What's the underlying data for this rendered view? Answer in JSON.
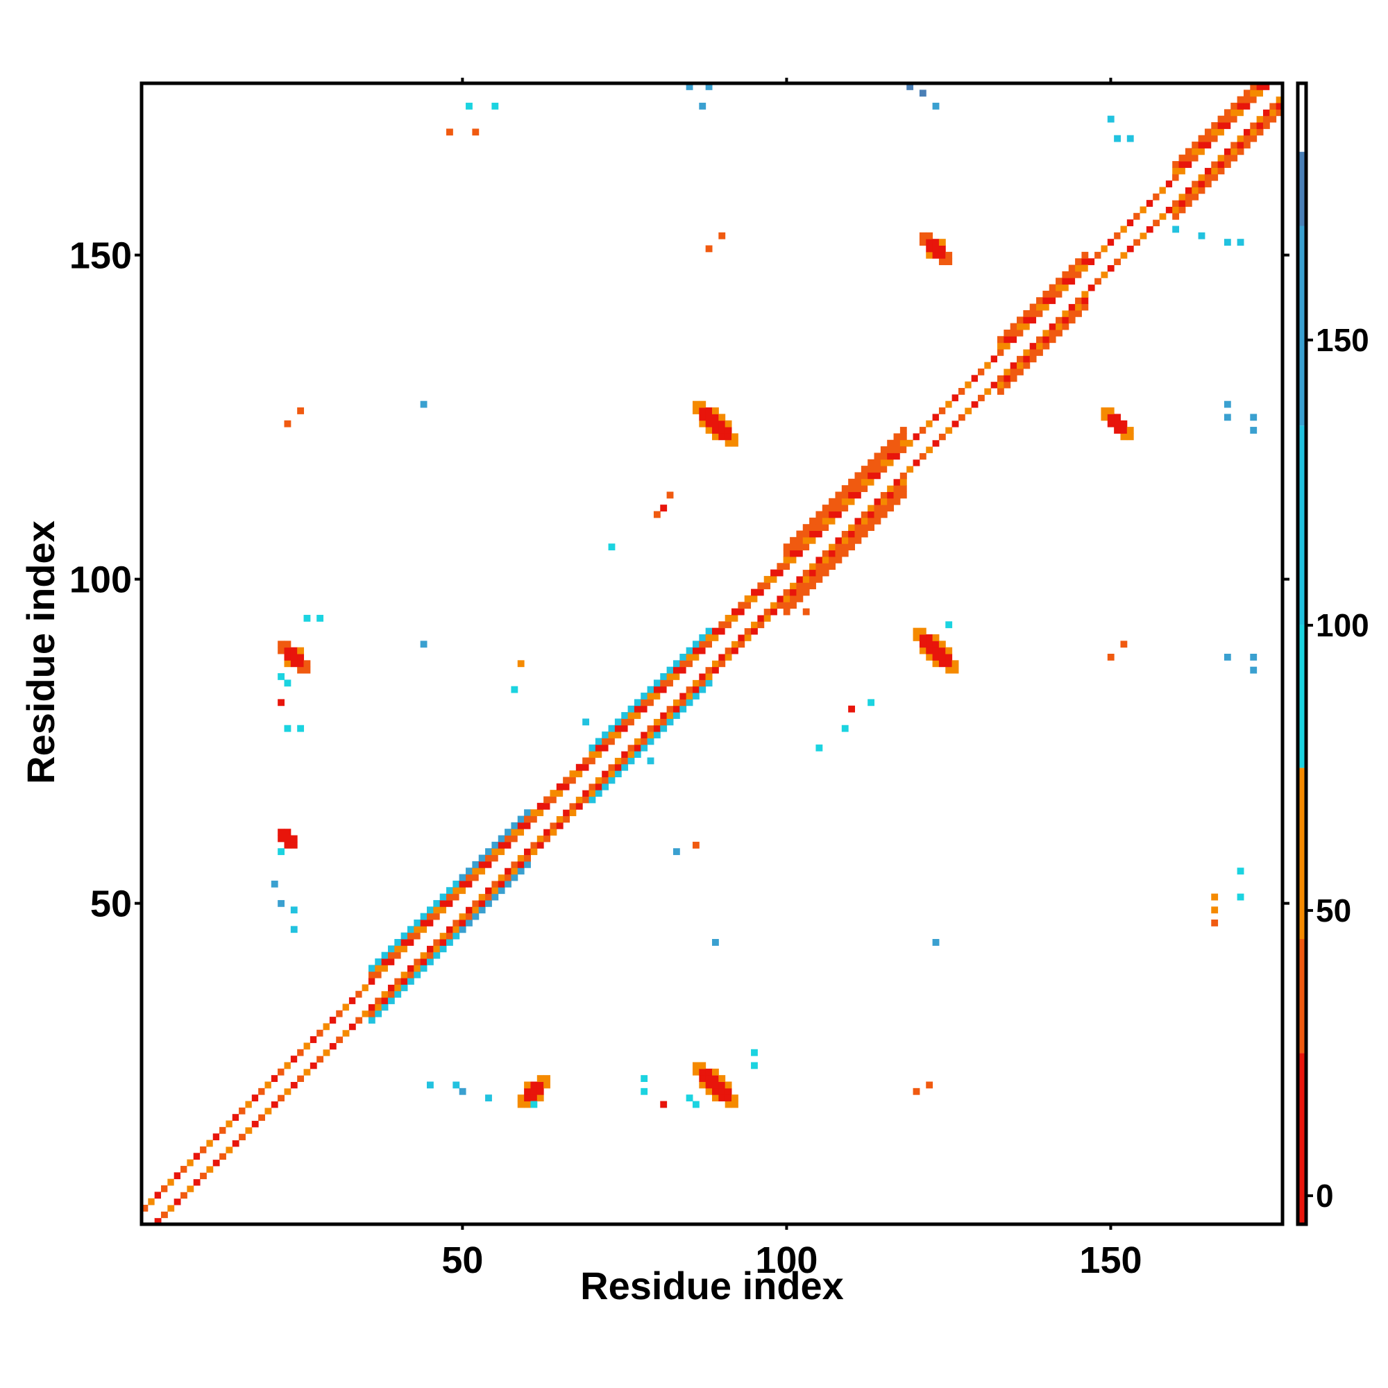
{
  "chart_data": {
    "type": "heatmap",
    "xlabel": "Residue index",
    "ylabel": "Residue index",
    "x_range": [
      1,
      176
    ],
    "y_range": [
      1,
      176
    ],
    "x_ticks": [
      50,
      100,
      150
    ],
    "y_ticks": [
      50,
      100,
      150
    ],
    "grid": false,
    "colorbar": {
      "placement": "right",
      "range": [
        -5,
        195
      ],
      "ticks": [
        0,
        50,
        100,
        150
      ],
      "bins": [
        {
          "from": -5,
          "to": 25,
          "color": "#e8150b"
        },
        {
          "from": 25,
          "to": 45,
          "color": "#f05a10"
        },
        {
          "from": 45,
          "to": 75,
          "color": "#f58a00"
        },
        {
          "from": 75,
          "to": 100,
          "color": "#1bd3e0"
        },
        {
          "from": 100,
          "to": 135,
          "color": "#22c2df"
        },
        {
          "from": 135,
          "to": 170,
          "color": "#3aa0d0"
        },
        {
          "from": 170,
          "to": 183,
          "color": "#4a7fb6"
        },
        {
          "from": 183,
          "to": 195,
          "color": "#ffffff"
        }
      ]
    },
    "diagonal": {
      "from": 1,
      "to": 176,
      "band_width": 3,
      "segments": [
        {
          "from": 1,
          "to": 22,
          "wide": 2,
          "color": "#f05a10"
        },
        {
          "from": 22,
          "to": 36,
          "wide": 2,
          "color": "#e8150b"
        },
        {
          "from": 36,
          "to": 50,
          "wide": 4,
          "color": "#22c2df"
        },
        {
          "from": 50,
          "to": 60,
          "wide": 4,
          "color": "#3aa0d0"
        },
        {
          "from": 60,
          "to": 70,
          "wide": 3,
          "color": "#e8150b"
        },
        {
          "from": 70,
          "to": 88,
          "wide": 4,
          "color": "#22c2df"
        },
        {
          "from": 88,
          "to": 100,
          "wide": 3,
          "color": "#e8150b"
        },
        {
          "from": 100,
          "to": 118,
          "wide": 5,
          "color": "#f05a10"
        },
        {
          "from": 118,
          "to": 133,
          "wide": 2,
          "color": "#e8150b"
        },
        {
          "from": 133,
          "to": 146,
          "wide": 4,
          "color": "#f05a10"
        },
        {
          "from": 146,
          "to": 160,
          "wide": 2,
          "color": "#e8150b"
        },
        {
          "from": 160,
          "to": 176,
          "wide": 4,
          "color": "#f05a10"
        }
      ]
    },
    "off_diagonal_blobs": [
      {
        "x": 24,
        "y": 88,
        "rx": 4.0,
        "ry": 1.5,
        "color": "#e8150b"
      },
      {
        "x": 23,
        "y": 60,
        "rx": 2.5,
        "ry": 1.3,
        "color": "#e8150b"
      },
      {
        "x": 61,
        "y": 21,
        "rx": 1.5,
        "ry": 3.0,
        "color": "#e8150b"
      },
      {
        "x": 89,
        "y": 22,
        "rx": 4.5,
        "ry": 1.5,
        "color": "#e8150b"
      },
      {
        "x": 89,
        "y": 124,
        "rx": 4.5,
        "ry": 1.5,
        "color": "#e8150b"
      },
      {
        "x": 123,
        "y": 89,
        "rx": 4.5,
        "ry": 1.5,
        "color": "#e8150b"
      },
      {
        "x": 123,
        "y": 151,
        "rx": 3.5,
        "ry": 1.5,
        "color": "#e8150b"
      },
      {
        "x": 151,
        "y": 124,
        "rx": 3.0,
        "ry": 1.3,
        "color": "#e8150b"
      }
    ],
    "off_diagonal_cells": [
      {
        "x": 85,
        "y": 20,
        "color": "#1bd3e0"
      },
      {
        "x": 86,
        "y": 19,
        "color": "#1bd3e0"
      },
      {
        "x": 95,
        "y": 27,
        "color": "#1bd3e0"
      },
      {
        "x": 95,
        "y": 25,
        "color": "#1bd3e0"
      },
      {
        "x": 61,
        "y": 19,
        "color": "#1bd3e0"
      },
      {
        "x": 22,
        "y": 85,
        "color": "#1bd3e0"
      },
      {
        "x": 23,
        "y": 84,
        "color": "#1bd3e0"
      },
      {
        "x": 22,
        "y": 58,
        "color": "#1bd3e0"
      },
      {
        "x": 45,
        "y": 22,
        "color": "#22c2df"
      },
      {
        "x": 49,
        "y": 22,
        "color": "#22c2df"
      },
      {
        "x": 50,
        "y": 21,
        "color": "#3aa0d0"
      },
      {
        "x": 54,
        "y": 20,
        "color": "#22c2df"
      },
      {
        "x": 78,
        "y": 23,
        "color": "#1bd3e0"
      },
      {
        "x": 78,
        "y": 21,
        "color": "#1bd3e0"
      },
      {
        "x": 81,
        "y": 19,
        "color": "#e8150b"
      },
      {
        "x": 120,
        "y": 21,
        "color": "#f05a10"
      },
      {
        "x": 122,
        "y": 22,
        "color": "#f05a10"
      },
      {
        "x": 23,
        "y": 124,
        "color": "#f05a10"
      },
      {
        "x": 25,
        "y": 126,
        "color": "#f05a10"
      },
      {
        "x": 44,
        "y": 127,
        "color": "#3aa0d0"
      },
      {
        "x": 44,
        "y": 90,
        "color": "#3aa0d0"
      },
      {
        "x": 26,
        "y": 94,
        "color": "#1bd3e0"
      },
      {
        "x": 28,
        "y": 94,
        "color": "#1bd3e0"
      },
      {
        "x": 22,
        "y": 81,
        "color": "#e8150b"
      },
      {
        "x": 23,
        "y": 77,
        "color": "#1bd3e0"
      },
      {
        "x": 25,
        "y": 77,
        "color": "#1bd3e0"
      },
      {
        "x": 21,
        "y": 53,
        "color": "#3aa0d0"
      },
      {
        "x": 22,
        "y": 50,
        "color": "#3aa0d0"
      },
      {
        "x": 24,
        "y": 49,
        "color": "#22c2df"
      },
      {
        "x": 24,
        "y": 46,
        "color": "#22c2df"
      },
      {
        "x": 51,
        "y": 173,
        "color": "#1bd3e0"
      },
      {
        "x": 55,
        "y": 173,
        "color": "#1bd3e0"
      },
      {
        "x": 48,
        "y": 169,
        "color": "#f05a10"
      },
      {
        "x": 52,
        "y": 169,
        "color": "#f05a10"
      },
      {
        "x": 85,
        "y": 176,
        "color": "#3aa0d0"
      },
      {
        "x": 88,
        "y": 176,
        "color": "#3aa0d0"
      },
      {
        "x": 87,
        "y": 173,
        "color": "#3aa0d0"
      },
      {
        "x": 119,
        "y": 176,
        "color": "#4a7fb6"
      },
      {
        "x": 121,
        "y": 175,
        "color": "#4a7fb6"
      },
      {
        "x": 123,
        "y": 173,
        "color": "#3aa0d0"
      },
      {
        "x": 88,
        "y": 151,
        "color": "#f05a10"
      },
      {
        "x": 90,
        "y": 153,
        "color": "#f05a10"
      },
      {
        "x": 82,
        "y": 113,
        "color": "#f05a10"
      },
      {
        "x": 80,
        "y": 110,
        "color": "#f05a10"
      },
      {
        "x": 81,
        "y": 111,
        "color": "#e8150b"
      },
      {
        "x": 73,
        "y": 105,
        "color": "#1bd3e0"
      },
      {
        "x": 59,
        "y": 87,
        "color": "#f58a00"
      },
      {
        "x": 58,
        "y": 83,
        "color": "#1bd3e0"
      },
      {
        "x": 69,
        "y": 78,
        "color": "#22c2df"
      },
      {
        "x": 79,
        "y": 72,
        "color": "#22c2df"
      },
      {
        "x": 83,
        "y": 58,
        "color": "#3aa0d0"
      },
      {
        "x": 86,
        "y": 59,
        "color": "#f05a10"
      },
      {
        "x": 89,
        "y": 44,
        "color": "#3aa0d0"
      },
      {
        "x": 103,
        "y": 95,
        "color": "#f05a10"
      },
      {
        "x": 105,
        "y": 74,
        "color": "#1bd3e0"
      },
      {
        "x": 109,
        "y": 77,
        "color": "#1bd3e0"
      },
      {
        "x": 110,
        "y": 80,
        "color": "#e8150b"
      },
      {
        "x": 113,
        "y": 81,
        "color": "#1bd3e0"
      },
      {
        "x": 123,
        "y": 44,
        "color": "#3aa0d0"
      },
      {
        "x": 125,
        "y": 93,
        "color": "#1bd3e0"
      },
      {
        "x": 150,
        "y": 88,
        "color": "#f05a10"
      },
      {
        "x": 152,
        "y": 90,
        "color": "#f05a10"
      },
      {
        "x": 150,
        "y": 171,
        "color": "#22c2df"
      },
      {
        "x": 151,
        "y": 168,
        "color": "#22c2df"
      },
      {
        "x": 153,
        "y": 168,
        "color": "#22c2df"
      },
      {
        "x": 160,
        "y": 154,
        "color": "#22c2df"
      },
      {
        "x": 164,
        "y": 153,
        "color": "#22c2df"
      },
      {
        "x": 168,
        "y": 152,
        "color": "#22c2df"
      },
      {
        "x": 170,
        "y": 152,
        "color": "#22c2df"
      },
      {
        "x": 168,
        "y": 127,
        "color": "#3aa0d0"
      },
      {
        "x": 168,
        "y": 125,
        "color": "#3aa0d0"
      },
      {
        "x": 172,
        "y": 125,
        "color": "#3aa0d0"
      },
      {
        "x": 172,
        "y": 123,
        "color": "#3aa0d0"
      },
      {
        "x": 168,
        "y": 88,
        "color": "#3aa0d0"
      },
      {
        "x": 172,
        "y": 88,
        "color": "#3aa0d0"
      },
      {
        "x": 172,
        "y": 86,
        "color": "#3aa0d0"
      },
      {
        "x": 166,
        "y": 51,
        "color": "#f58a00"
      },
      {
        "x": 166,
        "y": 49,
        "color": "#f58a00"
      },
      {
        "x": 166,
        "y": 47,
        "color": "#f05a10"
      },
      {
        "x": 170,
        "y": 51,
        "color": "#1bd3e0"
      },
      {
        "x": 170,
        "y": 55,
        "color": "#1bd3e0"
      }
    ]
  }
}
